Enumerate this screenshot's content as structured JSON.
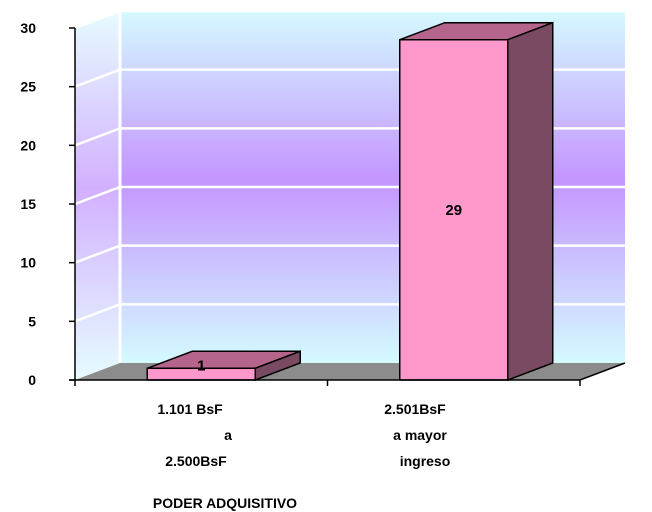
{
  "chart_data": {
    "type": "bar",
    "categories": [
      [
        "1.101 BsF",
        "a",
        "2.500BsF"
      ],
      [
        "2.501BsF",
        "a mayor",
        "ingreso"
      ]
    ],
    "values": [
      1,
      29
    ],
    "data_labels": [
      "1",
      "29"
    ],
    "xlabel": "PODER ADQUISITIVO",
    "ylabel": "",
    "ylim": [
      0,
      30
    ],
    "yticks": [
      0,
      5,
      10,
      15,
      20,
      25,
      30
    ],
    "grid": true,
    "legend": "none",
    "colors": {
      "bar_front": "#ff99cc",
      "bar_top": "#b5648b",
      "bar_side": "#7a4a62",
      "floor": "#8c8c8c",
      "wall_top": "#d4faff",
      "wall_mid": "#c495ff",
      "gridline": "#ffffff",
      "axis": "#000000"
    }
  }
}
